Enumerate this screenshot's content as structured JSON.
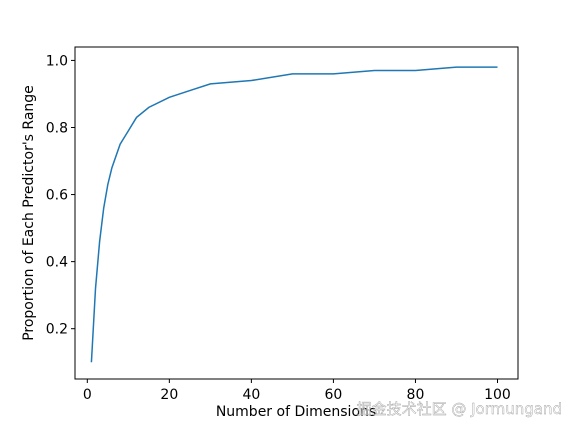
{
  "chart_data": {
    "type": "line",
    "xlabel": "Number of Dimensions",
    "ylabel": "Proportion of Each Predictor's Range",
    "watermark": "掘金技术社区 @ Jormungand",
    "x": [
      1,
      2,
      3,
      4,
      5,
      6,
      8,
      10,
      12,
      15,
      20,
      25,
      30,
      40,
      50,
      60,
      70,
      80,
      90,
      100
    ],
    "series": [
      {
        "color": "#1f77b4",
        "values": [
          0.1,
          0.32,
          0.46,
          0.56,
          0.63,
          0.68,
          0.75,
          0.79,
          0.83,
          0.86,
          0.89,
          0.91,
          0.93,
          0.94,
          0.96,
          0.96,
          0.97,
          0.97,
          0.98,
          0.98
        ]
      }
    ],
    "xlim": [
      -3,
      105
    ],
    "ylim": [
      0.05,
      1.04
    ],
    "xticks": [
      0,
      20,
      40,
      60,
      80,
      100
    ],
    "yticks": [
      0.2,
      0.4,
      0.6,
      0.8,
      {
        "value": 1,
        "label": "1.0"
      }
    ]
  }
}
